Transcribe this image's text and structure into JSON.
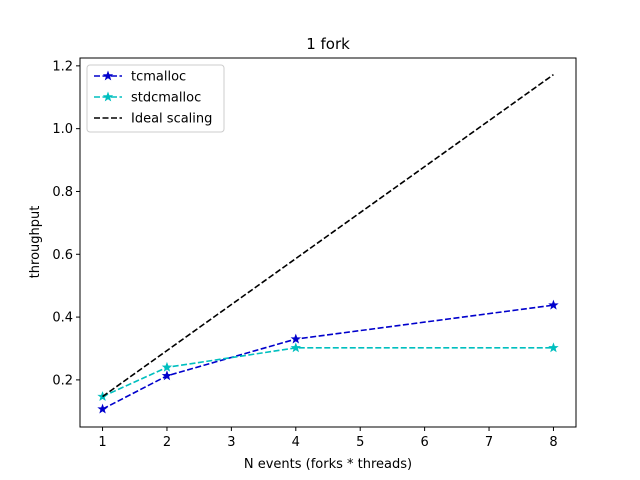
{
  "chart_data": {
    "type": "line",
    "title": "1 fork",
    "xlabel": "N events (forks * threads)",
    "ylabel": "throughput",
    "xlim": [
      0.65,
      8.35
    ],
    "ylim": [
      0.05,
      1.225
    ],
    "xticks": [
      1,
      2,
      3,
      4,
      5,
      6,
      7,
      8
    ],
    "yticks": [
      0.2,
      0.4,
      0.6,
      0.8,
      1.0,
      1.2
    ],
    "ytick_labels": [
      "0.2",
      "0.4",
      "0.6",
      "0.8",
      "1.0",
      "1.2"
    ],
    "grid": false,
    "legend_position": "top-left",
    "series": [
      {
        "name": "tcmalloc",
        "x": [
          1,
          2,
          4,
          8
        ],
        "y": [
          0.107,
          0.213,
          0.33,
          0.438
        ],
        "color": "#0000cc",
        "linestyle": "dashed",
        "marker": "star"
      },
      {
        "name": "stdcmalloc",
        "x": [
          1,
          2,
          4,
          8
        ],
        "y": [
          0.147,
          0.24,
          0.302,
          0.302
        ],
        "color": "#00bfbf",
        "linestyle": "dashed",
        "marker": "star"
      },
      {
        "name": "Ideal scaling",
        "x": [
          1,
          8
        ],
        "y": [
          0.147,
          1.172
        ],
        "color": "#000000",
        "linestyle": "dashed",
        "marker": "none"
      }
    ]
  }
}
